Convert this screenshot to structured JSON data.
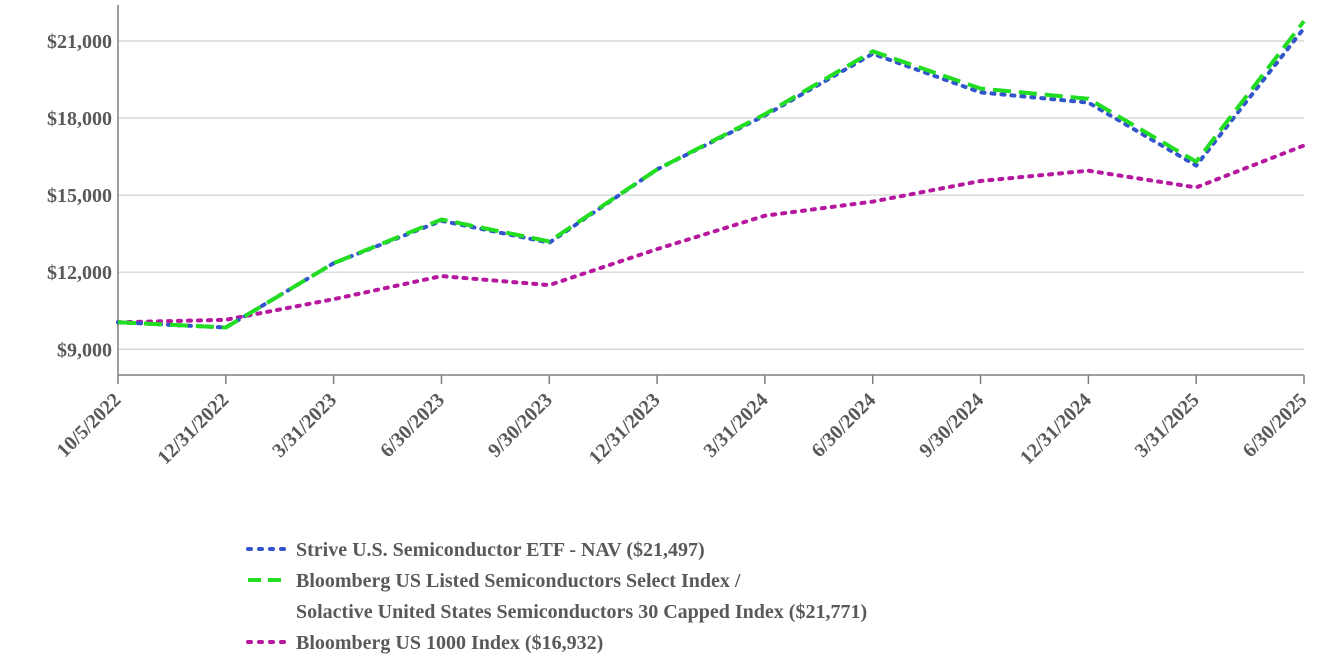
{
  "chart_data": {
    "type": "line",
    "title": "",
    "xlabel": "",
    "ylabel": "",
    "categories": [
      "10/5/2022",
      "12/31/2022",
      "3/31/2023",
      "6/30/2023",
      "9/30/2023",
      "12/31/2023",
      "3/31/2024",
      "6/30/2024",
      "9/30/2024",
      "12/31/2024",
      "3/31/2025",
      "6/30/2025"
    ],
    "y_ticks": [
      "$9,000",
      "$12,000",
      "$15,000",
      "$18,000",
      "$21,000"
    ],
    "y_tick_values": [
      9000,
      12000,
      15000,
      18000,
      21000
    ],
    "ylim": [
      8000,
      22400
    ],
    "grid": "horizontal",
    "legend_position": "bottom",
    "series": [
      {
        "name": "Strive U.S. Semiconductor ETF - NAV ($21,497)",
        "legend_lines": [
          "Strive U.S. Semiconductor ETF - NAV ($21,497)"
        ],
        "color": "#3355cc",
        "style": "dotted",
        "values": [
          10050,
          9850,
          12350,
          14000,
          13150,
          16000,
          18100,
          20500,
          19000,
          18600,
          16150,
          21497
        ]
      },
      {
        "name": "Bloomberg US Listed Semiconductors Select Index / Solactive United States Semiconductors 30 Capped Index ($21,771)",
        "legend_lines": [
          "Bloomberg US Listed Semiconductors Select Index /",
          "Solactive United States Semiconductors 30 Capped Index ($21,771)"
        ],
        "color": "#22dd22",
        "style": "dashed",
        "values": [
          10050,
          9850,
          12350,
          14050,
          13200,
          16000,
          18150,
          20600,
          19150,
          18750,
          16300,
          21771
        ]
      },
      {
        "name": "Bloomberg US 1000 Index ($16,932)",
        "legend_lines": [
          "Bloomberg US 1000 Index ($16,932)"
        ],
        "color": "#b5179e",
        "style": "dotted",
        "values": [
          10050,
          10150,
          10950,
          11850,
          11500,
          12900,
          14200,
          14750,
          15550,
          15950,
          15300,
          16932
        ]
      }
    ]
  }
}
